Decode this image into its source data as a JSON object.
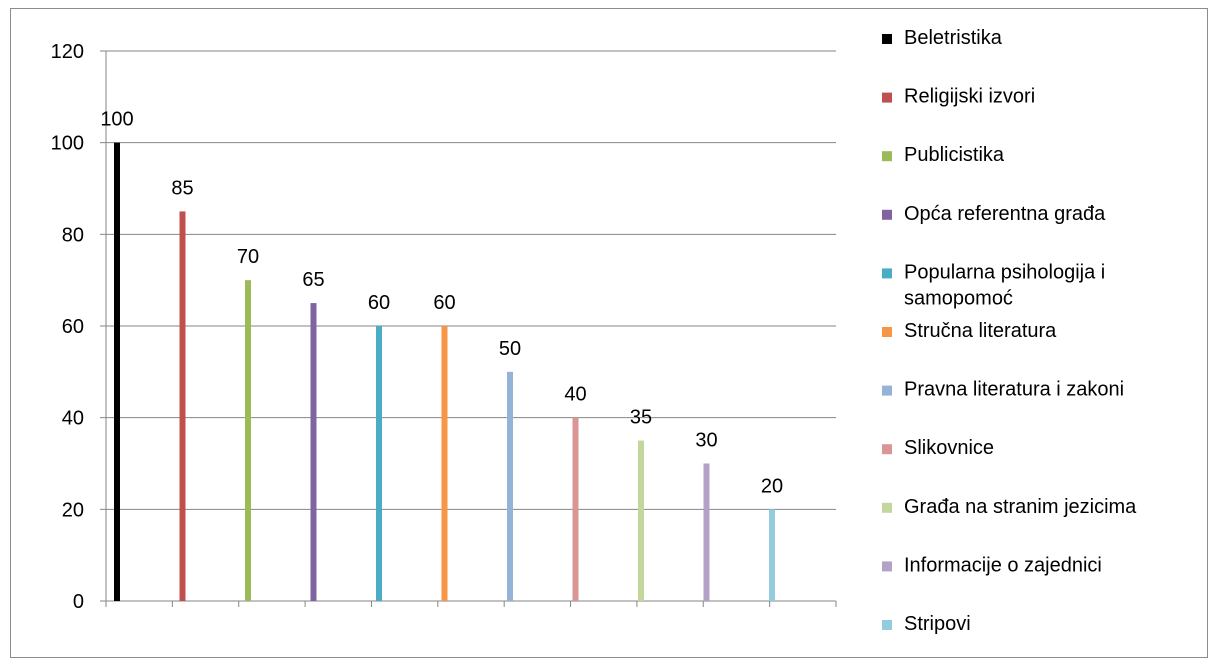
{
  "chart_data": {
    "type": "bar",
    "title": "",
    "xlabel": "",
    "ylabel": "",
    "ylim": [
      0,
      120
    ],
    "yticks": [
      0,
      20,
      40,
      60,
      80,
      100,
      120
    ],
    "grid": true,
    "legend_position": "right",
    "series": [
      {
        "name": "Beletristika",
        "value": 100,
        "color": "#000000"
      },
      {
        "name": "Religijski izvori",
        "value": 85,
        "color": "#c0504d"
      },
      {
        "name": "Publicistika",
        "value": 70,
        "color": "#9bbb59"
      },
      {
        "name": "Opća referentna građa",
        "value": 65,
        "color": "#8064a2"
      },
      {
        "name": "Popularna psihologija i samopomoć",
        "value": 60,
        "color": "#4bacc6"
      },
      {
        "name": "Stručna literatura",
        "value": 60,
        "color": "#f79646"
      },
      {
        "name": "Pravna literatura i zakoni",
        "value": 50,
        "color": "#95b3d7"
      },
      {
        "name": "Slikovnice",
        "value": 40,
        "color": "#d99694"
      },
      {
        "name": "Građa na stranim jezicima",
        "value": 35,
        "color": "#c3d69b"
      },
      {
        "name": "Informacije o zajednici",
        "value": 30,
        "color": "#b3a2c7"
      },
      {
        "name": "Stripovi",
        "value": 20,
        "color": "#93cddd"
      }
    ]
  }
}
